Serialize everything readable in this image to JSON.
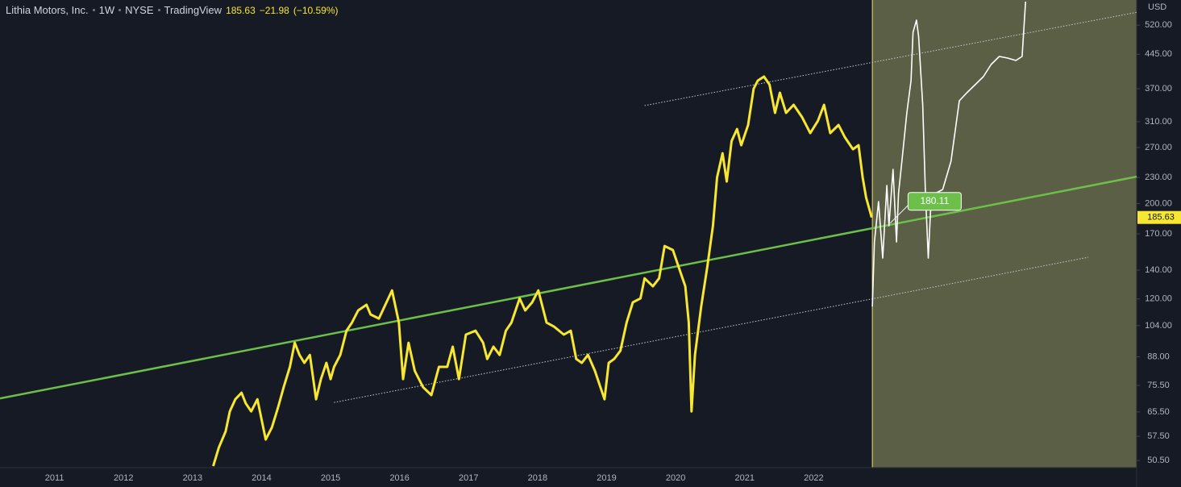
{
  "chart_data": {
    "type": "line",
    "title": "Lithia Motors, Inc.",
    "interval": "1W",
    "exchange": "NYSE",
    "source": "TradingView",
    "change": "−21.98",
    "change_pct": "(−10.59%)",
    "currency": "USD",
    "log_scale": true,
    "grid": false,
    "xlim": [
      2010.21,
      2026.68
    ],
    "ylim": [
      48.6,
      595
    ],
    "xticks": [
      2011,
      2012,
      2013,
      2014,
      2015,
      2016,
      2017,
      2018,
      2019,
      2020,
      2021,
      2022
    ],
    "yticks": [
      {
        "value": 50.5,
        "label": "50.50"
      },
      {
        "value": 57.5,
        "label": "57.50"
      },
      {
        "value": 65.5,
        "label": "65.50"
      },
      {
        "value": 75.5,
        "label": "75.50"
      },
      {
        "value": 88,
        "label": "88.00"
      },
      {
        "value": 104,
        "label": "104.00"
      },
      {
        "value": 120,
        "label": "120.00"
      },
      {
        "value": 140,
        "label": "140.00"
      },
      {
        "value": 170,
        "label": "170.00"
      },
      {
        "value": 200,
        "label": "200.00"
      },
      {
        "value": 230,
        "label": "230.00"
      },
      {
        "value": 270,
        "label": "270.00"
      },
      {
        "value": 310,
        "label": "310.00"
      },
      {
        "value": 370,
        "label": "370.00"
      },
      {
        "value": 445,
        "label": "445.00"
      },
      {
        "value": 520,
        "label": "520.00"
      }
    ],
    "highlight": {
      "x": [
        2022.85,
        2026.68
      ],
      "color": "#5b5f45",
      "edge_color": "#e8e36a"
    },
    "series": [
      {
        "color": "#f7e731",
        "width": 3,
        "x": [
          2013.3,
          2013.38,
          2013.48,
          2013.54,
          2013.62,
          2013.71,
          2013.77,
          2013.85,
          2013.94,
          2014.06,
          2014.15,
          2014.24,
          2014.32,
          2014.41,
          2014.48,
          2014.55,
          2014.62,
          2014.7,
          2014.79,
          2014.86,
          2014.94,
          2015.0,
          2015.05,
          2015.14,
          2015.23,
          2015.31,
          2015.4,
          2015.52,
          2015.58,
          2015.7,
          2015.81,
          2015.89,
          2015.99,
          2016.05,
          2016.13,
          2016.22,
          2016.34,
          2016.46,
          2016.57,
          2016.69,
          2016.77,
          2016.86,
          2016.96,
          2017.1,
          2017.21,
          2017.27,
          2017.36,
          2017.45,
          2017.54,
          2017.62,
          2017.74,
          2017.82,
          2017.92,
          2018.01,
          2018.13,
          2018.24,
          2018.38,
          2018.48,
          2018.56,
          2018.64,
          2018.73,
          2018.83,
          2018.91,
          2018.97,
          2019.03,
          2019.11,
          2019.2,
          2019.29,
          2019.38,
          2019.49,
          2019.55,
          2019.67,
          2019.76,
          2019.84,
          2019.96,
          2020.02,
          2020.14,
          2020.19,
          2020.23,
          2020.28,
          2020.37,
          2020.46,
          2020.54,
          2020.6,
          2020.68,
          2020.74,
          2020.81,
          2020.89,
          2020.95,
          2021.05,
          2021.13,
          2021.19,
          2021.28,
          2021.36,
          2021.44,
          2021.51,
          2021.6,
          2021.71,
          2021.83,
          2021.95,
          2022.06,
          2022.15,
          2022.24,
          2022.36,
          2022.45,
          2022.57,
          2022.65,
          2022.71,
          2022.76,
          2022.84
        ],
        "values": [
          49.0,
          54.1,
          59.0,
          65.7,
          70.1,
          72.6,
          68.6,
          65.7,
          70.1,
          56.5,
          60.3,
          67.2,
          74.8,
          83.4,
          94.9,
          88.9,
          85.2,
          88.9,
          70.1,
          78.1,
          85.2,
          78.1,
          83.4,
          88.9,
          101.2,
          105.7,
          112.8,
          116.3,
          110.4,
          108.0,
          117.8,
          125.6,
          105.7,
          78.1,
          94.9,
          81.6,
          74.8,
          71.7,
          83.4,
          83.4,
          92.9,
          78.1,
          99.1,
          101.2,
          94.9,
          87.0,
          92.9,
          88.9,
          101.2,
          105.7,
          120.3,
          112.8,
          117.8,
          125.6,
          105.7,
          103.4,
          99.1,
          101.2,
          87.0,
          85.2,
          88.9,
          81.6,
          74.8,
          70.1,
          85.2,
          87.0,
          90.9,
          105.7,
          117.8,
          120.3,
          134.0,
          128.4,
          134.0,
          159.3,
          155.9,
          146.1,
          128.4,
          105.7,
          65.7,
          88.9,
          115.2,
          143.0,
          177.5,
          230.0,
          261.8,
          225.1,
          279.4,
          298.1,
          273.4,
          304.6,
          370.0,
          386.3,
          394.7,
          378.0,
          325.0,
          362.1,
          325.0,
          339.4,
          318.0,
          291.7,
          311.2,
          339.4,
          291.7,
          304.6,
          285.5,
          267.5,
          273.4,
          230.0,
          206.5,
          185.63
        ]
      },
      {
        "color": "#ffffff",
        "width": 1.6,
        "x": [
          2022.85,
          2022.88,
          2022.94,
          2023.0,
          2023.06,
          2023.09,
          2023.15,
          2023.2,
          2023.23,
          2023.29,
          2023.35,
          2023.41,
          2023.44,
          2023.49,
          2023.52,
          2023.58,
          2023.62,
          2023.66,
          2023.7,
          2023.76,
          2023.87,
          2023.99,
          2024.11,
          2024.22,
          2024.34,
          2024.46,
          2024.57,
          2024.69,
          2024.81,
          2024.93,
          2025.02,
          2025.07
        ],
        "values": [
          115.2,
          162.8,
          202.1,
          149.3,
          220.3,
          177.5,
          240.2,
          162.8,
          211.0,
          261.8,
          325.0,
          386.3,
          500.6,
          534.0,
          489.9,
          339.4,
          211.0,
          149.3,
          202.1,
          211.0,
          215.6,
          250.8,
          346.7,
          362.1,
          378.0,
          394.7,
          421.1,
          439.7,
          435.9,
          430.3,
          439.7,
          590
        ]
      }
    ],
    "trend_lines": [
      {
        "color": "#6cc04a",
        "style": "solid",
        "x": [
          2010.21,
          2026.68
        ],
        "values": [
          70.4,
          231
        ]
      },
      {
        "color": "#c8cbd2",
        "style": "dotted",
        "x": [
          2015.05,
          2025.98
        ],
        "values": [
          68.9,
          150
        ]
      },
      {
        "color": "#c8cbd2",
        "style": "dotted",
        "x": [
          2019.55,
          2026.68
        ],
        "values": [
          338,
          557
        ]
      }
    ],
    "annotation": {
      "x": 2023.11,
      "value": 180.11,
      "color": "#6cc04a"
    },
    "price_label_color": "#f7e731"
  }
}
